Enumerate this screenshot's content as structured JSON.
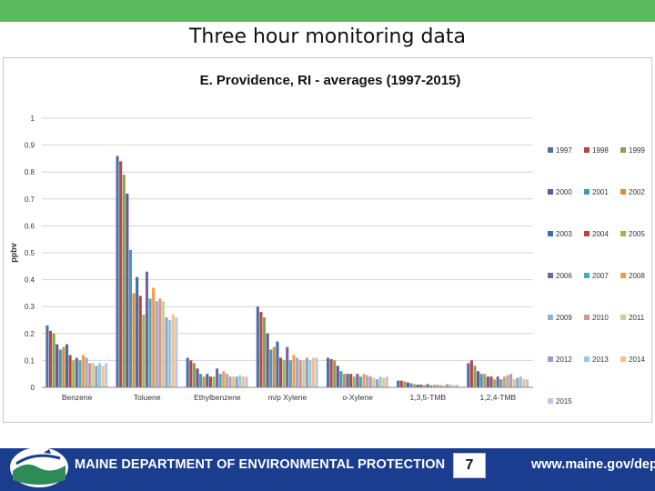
{
  "slide": {
    "title": "Three hour monitoring data",
    "page_number": "7"
  },
  "footer": {
    "org_name": "MAINE DEPARTMENT OF ENVIRONMENTAL PROTECTION",
    "url": "www.maine.gov/dep",
    "logo_icon": "maine-dep-logo-icon"
  },
  "colors": {
    "top_bar": "#5cb85c",
    "footer": "#1b3d8f"
  },
  "chart_data": {
    "type": "bar",
    "title": "E. Providence, RI - averages (1997-2015)",
    "xlabel": "",
    "ylabel": "ppbv",
    "ylim": [
      0,
      1
    ],
    "yticks": [
      "0",
      "0.1",
      "0.2",
      "0.3",
      "0.4",
      "0.5",
      "0.6",
      "0.7",
      "0.8",
      "0.9",
      "1"
    ],
    "grid": true,
    "legend_position": "right",
    "categories": [
      "Benzene",
      "Toluene",
      "Ethylbenzene",
      "m/p Xylene",
      "o-Xylene",
      "1,3,5-TMB",
      "1,2,4-TMB"
    ],
    "series": [
      {
        "name": "1997",
        "color": "#4f6fa8",
        "values": [
          0.23,
          0.86,
          0.11,
          0.3,
          0.11,
          0.025,
          0.09
        ]
      },
      {
        "name": "1998",
        "color": "#b04a47",
        "values": [
          0.21,
          0.84,
          0.1,
          0.28,
          0.105,
          0.025,
          0.1
        ]
      },
      {
        "name": "1999",
        "color": "#8aa34a",
        "values": [
          0.2,
          0.79,
          0.09,
          0.26,
          0.1,
          0.022,
          0.08
        ]
      },
      {
        "name": "2000",
        "color": "#6a5294",
        "values": [
          0.16,
          0.72,
          0.07,
          0.2,
          0.08,
          0.018,
          0.06
        ]
      },
      {
        "name": "2001",
        "color": "#3f9bb3",
        "values": [
          0.14,
          0.51,
          0.05,
          0.14,
          0.06,
          0.015,
          0.05
        ]
      },
      {
        "name": "2002",
        "color": "#e08a3c",
        "values": [
          0.15,
          0.35,
          0.04,
          0.15,
          0.05,
          0.012,
          0.05
        ]
      },
      {
        "name": "2003",
        "color": "#3d6ea8",
        "values": [
          0.16,
          0.41,
          0.05,
          0.17,
          0.05,
          0.01,
          0.04
        ]
      },
      {
        "name": "2004",
        "color": "#b8443f",
        "values": [
          0.12,
          0.34,
          0.04,
          0.11,
          0.05,
          0.01,
          0.04
        ]
      },
      {
        "name": "2005",
        "color": "#98b954",
        "values": [
          0.1,
          0.27,
          0.04,
          0.1,
          0.04,
          0.008,
          0.03
        ]
      },
      {
        "name": "2006",
        "color": "#7a5fa6",
        "values": [
          0.11,
          0.43,
          0.07,
          0.15,
          0.05,
          0.012,
          0.04
        ]
      },
      {
        "name": "2007",
        "color": "#46aac5",
        "values": [
          0.1,
          0.33,
          0.05,
          0.1,
          0.04,
          0.008,
          0.03
        ]
      },
      {
        "name": "2008",
        "color": "#f59a45",
        "values": [
          0.12,
          0.37,
          0.06,
          0.12,
          0.05,
          0.01,
          0.04
        ]
      },
      {
        "name": "2009",
        "color": "#95aed3",
        "values": [
          0.11,
          0.32,
          0.05,
          0.11,
          0.045,
          0.01,
          0.045
        ]
      },
      {
        "name": "2010",
        "color": "#d9918f",
        "values": [
          0.09,
          0.33,
          0.04,
          0.1,
          0.04,
          0.008,
          0.05
        ]
      },
      {
        "name": "2011",
        "color": "#c1d497",
        "values": [
          0.09,
          0.32,
          0.04,
          0.1,
          0.035,
          0.008,
          0.03
        ]
      },
      {
        "name": "2012",
        "color": "#a896c3",
        "values": [
          0.08,
          0.26,
          0.04,
          0.11,
          0.03,
          0.012,
          0.035
        ]
      },
      {
        "name": "2013",
        "color": "#8ccfe0",
        "values": [
          0.09,
          0.25,
          0.045,
          0.1,
          0.04,
          0.01,
          0.04
        ]
      },
      {
        "name": "2014",
        "color": "#f8be8a",
        "values": [
          0.08,
          0.27,
          0.04,
          0.11,
          0.035,
          0.008,
          0.03
        ]
      },
      {
        "name": "2015",
        "color": "#b9c8e4",
        "values": [
          0.09,
          0.26,
          0.04,
          0.11,
          0.04,
          0.01,
          0.03
        ]
      }
    ]
  }
}
